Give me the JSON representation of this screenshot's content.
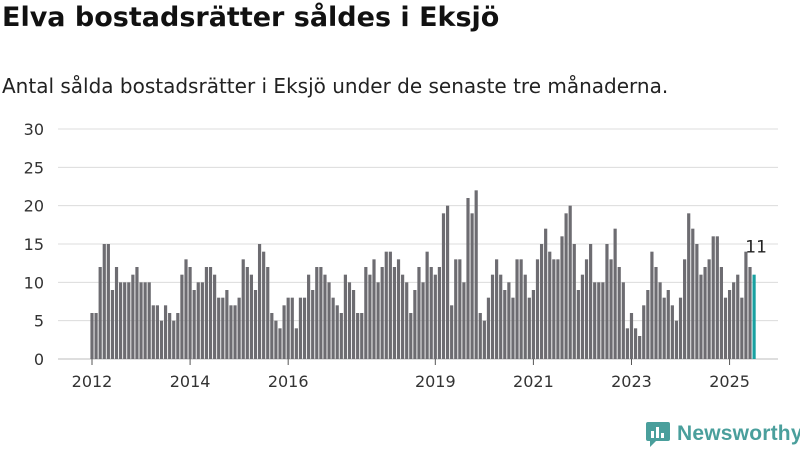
{
  "title": "Elva bostadsrätter såldes i Eksjö",
  "subtitle": "Antal sålda bostadsrätter i Eksjö under de senaste tre månaderna.",
  "brand": "Newsworthy",
  "colors": {
    "bar": "#6d6c71",
    "highlight": "#19a1a1",
    "grid": "#dcdcdc",
    "brand": "#4a9f9c"
  },
  "chart_data": {
    "type": "bar",
    "title": "Elva bostadsrätter såldes i Eksjö",
    "subtitle": "Antal sålda bostadsrätter i Eksjö under de senaste tre månaderna.",
    "xlabel": "",
    "ylabel": "",
    "ylim": [
      0,
      30
    ],
    "yticks": [
      0,
      5,
      10,
      15,
      20,
      25,
      30
    ],
    "grid": true,
    "legend": "none",
    "period": "rolling three months, monthly steps",
    "x_start": "2012-01",
    "xticks": [
      "2012",
      "2014",
      "2016",
      "2019",
      "2021",
      "2023",
      "2025"
    ],
    "xtick_months": [
      "2012-01",
      "2014-01",
      "2016-01",
      "2019-01",
      "2021-01",
      "2023-01",
      "2025-01"
    ],
    "highlight_label": "11",
    "values": [
      6,
      6,
      12,
      15,
      15,
      9,
      12,
      10,
      10,
      10,
      11,
      12,
      10,
      10,
      10,
      7,
      7,
      5,
      7,
      6,
      5,
      6,
      11,
      13,
      12,
      9,
      10,
      10,
      12,
      12,
      11,
      8,
      8,
      9,
      7,
      7,
      8,
      13,
      12,
      11,
      9,
      15,
      14,
      12,
      6,
      5,
      4,
      7,
      8,
      8,
      4,
      8,
      8,
      11,
      9,
      12,
      12,
      11,
      10,
      8,
      7,
      6,
      11,
      10,
      9,
      6,
      6,
      12,
      11,
      13,
      10,
      12,
      14,
      14,
      12,
      13,
      11,
      10,
      6,
      9,
      12,
      10,
      14,
      12,
      11,
      12,
      19,
      20,
      7,
      13,
      13,
      10,
      21,
      19,
      22,
      6,
      5,
      8,
      11,
      13,
      11,
      9,
      10,
      8,
      13,
      13,
      11,
      8,
      9,
      13,
      15,
      17,
      14,
      13,
      13,
      16,
      19,
      20,
      15,
      9,
      11,
      13,
      15,
      10,
      10,
      10,
      15,
      13,
      17,
      12,
      10,
      4,
      6,
      4,
      3,
      7,
      9,
      14,
      12,
      10,
      8,
      9,
      7,
      5,
      8,
      13,
      19,
      17,
      15,
      11,
      12,
      13,
      16,
      16,
      12,
      8,
      9,
      10,
      11,
      8,
      14,
      12,
      11
    ]
  }
}
